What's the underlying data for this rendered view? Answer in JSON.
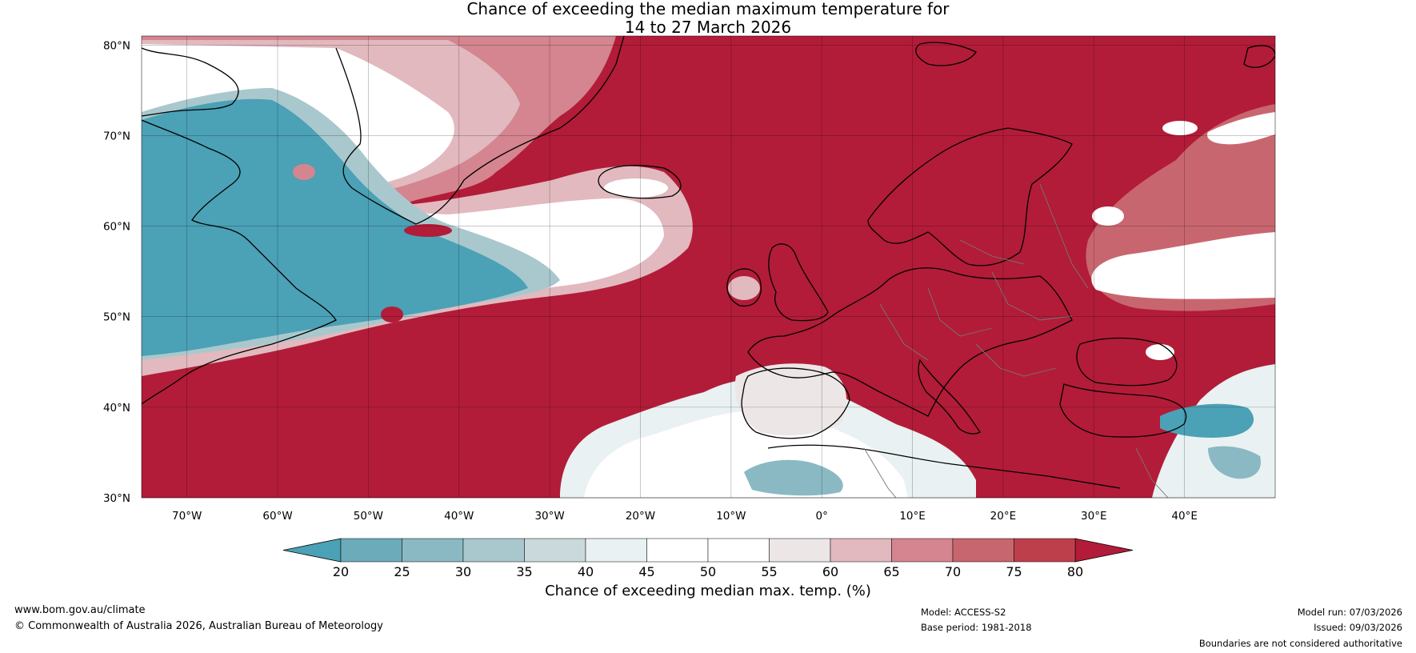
{
  "title": {
    "line1": "Chance of exceeding the median maximum temperature for",
    "line2": "14 to 27 March 2026"
  },
  "map": {
    "lat_labels": [
      "80°N",
      "70°N",
      "60°N",
      "50°N",
      "40°N",
      "30°N"
    ],
    "lon_labels": [
      "70°W",
      "60°W",
      "50°W",
      "40°W",
      "30°W",
      "20°W",
      "10°W",
      "0°",
      "10°E",
      "20°E",
      "30°E",
      "40°E"
    ],
    "lat_values": [
      80,
      70,
      60,
      50,
      40,
      30
    ],
    "lon_values": [
      -70,
      -60,
      -50,
      -40,
      -30,
      -20,
      -10,
      0,
      10,
      20,
      30,
      40
    ],
    "lat_range": [
      30,
      81
    ],
    "lon_range": [
      -75,
      50
    ],
    "colors": {
      "below_low": "#4ba1b6",
      "band_20_25": "#6cabba",
      "band_25_30": "#8ab9c4",
      "band_30_35": "#a9c8cd",
      "band_35_40": "#cad9db",
      "band_40_45": "#e9f1f2",
      "neutral": "#ffffff",
      "band_55_60": "#ece6e7",
      "band_60_65": "#e1b9bf",
      "band_65_70": "#d4858f",
      "band_70_75": "#c8666f",
      "band_75_80": "#be3f4c",
      "above_high": "#b21c38",
      "coast": "#000000",
      "border": "#777777"
    }
  },
  "colorbar": {
    "ticks": [
      "20",
      "25",
      "30",
      "35",
      "40",
      "45",
      "50",
      "55",
      "60",
      "65",
      "70",
      "75",
      "80"
    ],
    "title": "Chance of exceeding median max. temp. (%)",
    "band_colors": [
      "#6cabba",
      "#8ab9c4",
      "#a9c8cd",
      "#cad9db",
      "#e9f1f2",
      "#ffffff",
      "#ffffff",
      "#ece6e7",
      "#e1b9bf",
      "#d4858f",
      "#c8666f",
      "#be3f4c"
    ],
    "extend_low_color": "#4ba1b6",
    "extend_high_color": "#b21c38"
  },
  "footer": {
    "website": "www.bom.gov.au/climate",
    "copyright": "© Commonwealth of Australia 2026, Australian Bureau of Meteorology",
    "model": "Model: ACCESS-S2",
    "base_period": "Base period: 1981-2018",
    "model_run": "Model run: 07/03/2026",
    "issued": "Issued: 09/03/2026",
    "disclaimer": "Boundaries are not considered authoritative"
  }
}
